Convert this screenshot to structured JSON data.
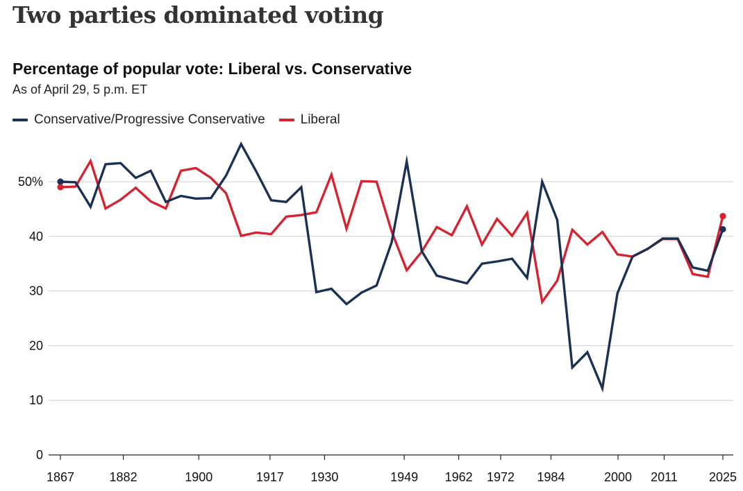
{
  "headline": "Two parties dominated voting",
  "chart_data": {
    "type": "line",
    "title": "Percentage of popular vote: Liberal vs. Conservative",
    "subtitle": "As of April 29, 5 p.m. ET",
    "xlabel": "",
    "ylabel": "",
    "ylim": [
      0,
      57
    ],
    "yticks": [
      0,
      10,
      20,
      30,
      40,
      50
    ],
    "ytick_labels": [
      "0",
      "10",
      "20",
      "30",
      "40",
      "50%"
    ],
    "xticks": [
      1867,
      1882,
      1900,
      1917,
      1930,
      1949,
      1962,
      1972,
      1984,
      2000,
      2011,
      2025
    ],
    "grid": true,
    "legend_position": "top-left",
    "series": [
      {
        "name": "Conservative/Progressive Conservative",
        "color": "#1b3055",
        "values": [
          50.0,
          49.9,
          45.4,
          53.2,
          53.4,
          50.7,
          52.0,
          46.3,
          47.4,
          46.9,
          47.0,
          51.1,
          56.9,
          51.9,
          46.6,
          46.3,
          49.0,
          29.8,
          30.4,
          27.6,
          29.7,
          31.0,
          38.9,
          53.7,
          37.3,
          32.8,
          32.1,
          31.4,
          35.0,
          35.4,
          35.9,
          32.4,
          50.0,
          43.0,
          16.0,
          18.8,
          12.2,
          29.6,
          36.3,
          37.7,
          39.6,
          39.6,
          34.3,
          33.7,
          41.3
        ]
      },
      {
        "name": "Liberal",
        "color": "#d7232f",
        "values": [
          49.0,
          49.1,
          53.8,
          45.1,
          46.7,
          48.9,
          46.4,
          45.1,
          52.0,
          52.5,
          50.7,
          47.9,
          40.1,
          40.7,
          40.4,
          43.6,
          43.9,
          44.4,
          51.3,
          41.4,
          50.1,
          50.0,
          40.9,
          33.8,
          37.2,
          41.7,
          40.2,
          45.5,
          38.5,
          43.2,
          40.1,
          44.3,
          28.0,
          31.9,
          41.2,
          38.5,
          40.8,
          36.7,
          36.3,
          37.7,
          39.5,
          39.5,
          33.1,
          32.6,
          43.7
        ]
      }
    ]
  }
}
